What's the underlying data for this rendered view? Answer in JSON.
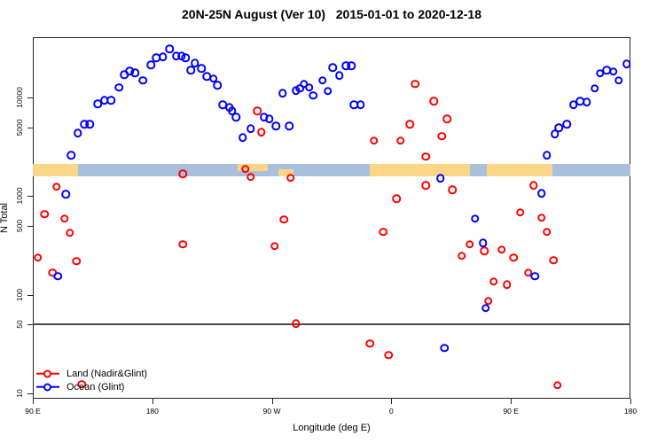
{
  "title": "20N-25N August (Ver 10)   2015-01-01 to 2020-12-18",
  "chart_data": {
    "type": "scatter",
    "title": "20N-25N August (Ver 10)   2015-01-01 to 2020-12-18",
    "xlabel": "Longitude (deg E)",
    "ylabel": "N Total",
    "x_axis": {
      "range": [
        90,
        540
      ],
      "ticks": [
        90,
        180,
        270,
        360,
        450,
        540
      ],
      "tick_labels": [
        "90 E",
        "180",
        "90 W",
        "0",
        "90 E",
        "180"
      ],
      "grid": false
    },
    "y_axis": {
      "scale": "log",
      "range": [
        8.8,
        41000
      ],
      "ticks": [
        10,
        50,
        100,
        500,
        1000,
        5000,
        10000
      ],
      "tick_labels": [
        "10",
        "50",
        "100",
        "500",
        "1000",
        "5000",
        "10000"
      ],
      "grid": false
    },
    "reference_line_N": 50,
    "map_strip": {
      "N_range": [
        1590,
        2120
      ],
      "ocean_color": "#A9C0DC",
      "land_color": "#FBD687",
      "land_segments": [
        {
          "lon": [
            90,
            124
          ],
          "part": "full"
        },
        {
          "lon": [
            244,
            267
          ],
          "part": "top"
        },
        {
          "lon": [
            275,
            286
          ],
          "part": "bottom"
        },
        {
          "lon": [
            344,
            419
          ],
          "part": "full"
        },
        {
          "lon": [
            432,
            481
          ],
          "part": "full"
        }
      ]
    },
    "legend": {
      "position": "bottom-left",
      "items": [
        {
          "label": "Land (Nadir&Glint)",
          "color": "#FF0000"
        },
        {
          "label": "Ocean (Glint)",
          "color": "#0000FF"
        }
      ]
    },
    "series": [
      {
        "name": "Land (Nadir&Glint)",
        "color": "#FF0000",
        "marker": "open-circle",
        "points": [
          [
            259,
            7340
          ],
          [
            262,
            4470
          ],
          [
            250,
            1880
          ],
          [
            254,
            1560
          ],
          [
            284,
            1540
          ],
          [
            203,
            1690
          ],
          [
            378,
            13700
          ],
          [
            392,
            9230
          ],
          [
            402,
            6100
          ],
          [
            374,
            5390
          ],
          [
            347,
            3640
          ],
          [
            367,
            3640
          ],
          [
            398,
            4040
          ],
          [
            386,
            2510
          ],
          [
            108,
            1240
          ],
          [
            99,
            653
          ],
          [
            114,
            589
          ],
          [
            118,
            423
          ],
          [
            203,
            323
          ],
          [
            94,
            237
          ],
          [
            123,
            218
          ],
          [
            105,
            167
          ],
          [
            127,
            12.3
          ],
          [
            279,
            577
          ],
          [
            272,
            310
          ],
          [
            288,
            51
          ],
          [
            364,
            946
          ],
          [
            354,
            432
          ],
          [
            344,
            31.8
          ],
          [
            358,
            24.3
          ],
          [
            386,
            1290
          ],
          [
            406,
            1160
          ],
          [
            467,
            1290
          ],
          [
            457,
            681
          ],
          [
            473,
            601
          ],
          [
            477,
            435
          ],
          [
            419,
            323
          ],
          [
            430,
            279
          ],
          [
            413,
            247
          ],
          [
            443,
            286
          ],
          [
            452,
            238
          ],
          [
            482,
            223
          ],
          [
            463,
            167
          ],
          [
            437,
            136
          ],
          [
            447,
            127
          ],
          [
            433,
            86
          ],
          [
            485,
            12.1
          ]
        ]
      },
      {
        "name": "Ocean (Glint)",
        "color": "#0000FF",
        "marker": "open-circle",
        "points": [
          [
            119,
            2610
          ],
          [
            124,
            4380
          ],
          [
            129,
            5390
          ],
          [
            133,
            5390
          ],
          [
            139,
            8670
          ],
          [
            144,
            9420
          ],
          [
            149,
            9420
          ],
          [
            155,
            12600
          ],
          [
            159,
            17100
          ],
          [
            163,
            18600
          ],
          [
            167,
            17900
          ],
          [
            173,
            14900
          ],
          [
            179,
            21500
          ],
          [
            183,
            25400
          ],
          [
            188,
            25900
          ],
          [
            193,
            31300
          ],
          [
            198,
            26500
          ],
          [
            202,
            26500
          ],
          [
            205,
            25400
          ],
          [
            209,
            19000
          ],
          [
            212,
            22400
          ],
          [
            217,
            19800
          ],
          [
            221,
            16400
          ],
          [
            226,
            15500
          ],
          [
            229,
            13400
          ],
          [
            233,
            8490
          ],
          [
            238,
            7980
          ],
          [
            240,
            7340
          ],
          [
            243,
            6350
          ],
          [
            248,
            3950
          ],
          [
            254,
            4860
          ],
          [
            264,
            6350
          ],
          [
            268,
            6100
          ],
          [
            273,
            5160
          ],
          [
            283,
            5160
          ],
          [
            278,
            11100
          ],
          [
            288,
            11800
          ],
          [
            291,
            12400
          ],
          [
            294,
            13700
          ],
          [
            298,
            12600
          ],
          [
            301,
            10500
          ],
          [
            308,
            14900
          ],
          [
            312,
            11600
          ],
          [
            316,
            20200
          ],
          [
            321,
            16800
          ],
          [
            326,
            21100
          ],
          [
            330,
            21100
          ],
          [
            332,
            8490
          ],
          [
            337,
            8420
          ],
          [
            397,
            1520
          ],
          [
            473,
            1070
          ],
          [
            423,
            589
          ],
          [
            429,
            336
          ],
          [
            468,
            154
          ],
          [
            431,
            73
          ],
          [
            400,
            28.7
          ],
          [
            115,
            1050
          ],
          [
            109,
            154
          ],
          [
            477,
            2610
          ],
          [
            483,
            4290
          ],
          [
            486,
            4960
          ],
          [
            492,
            5390
          ],
          [
            497,
            8490
          ],
          [
            502,
            9210
          ],
          [
            507,
            9000
          ],
          [
            513,
            12400
          ],
          [
            517,
            17600
          ],
          [
            522,
            19000
          ],
          [
            527,
            18300
          ],
          [
            531,
            14900
          ],
          [
            537,
            22000
          ]
        ]
      }
    ]
  }
}
